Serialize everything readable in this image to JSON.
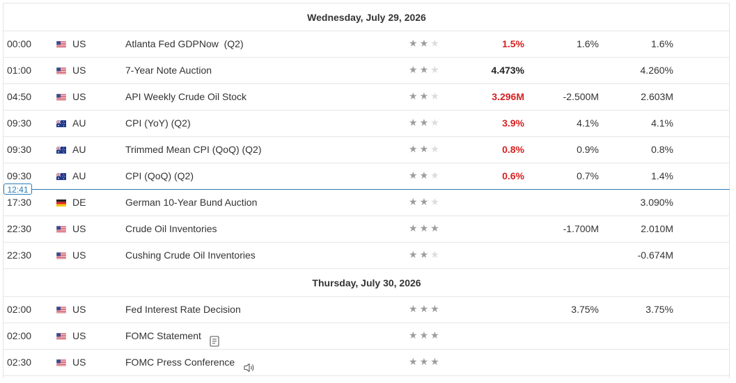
{
  "days": [
    {
      "date": "Wednesday, July 29, 2026",
      "events": [
        {
          "time": "00:00",
          "flag": "us-flag",
          "country": "US",
          "event": "Atlanta Fed GDPNow  (Q2)",
          "importance": 2,
          "actual": "1.5%",
          "actual_color": "#d62020",
          "forecast": "1.6%",
          "previous": "1.6%"
        },
        {
          "time": "01:00",
          "flag": "us-flag",
          "country": "US",
          "event": "7-Year Note Auction",
          "importance": 2,
          "actual": "4.473%",
          "actual_color": "#222222",
          "forecast": "",
          "previous": "4.260%"
        },
        {
          "time": "04:50",
          "flag": "us-flag",
          "country": "US",
          "event": "API Weekly Crude Oil Stock",
          "importance": 2,
          "actual": "3.296M",
          "actual_color": "#d62020",
          "forecast": "-2.500M",
          "previous": "2.603M"
        },
        {
          "time": "09:30",
          "flag": "au-flag",
          "country": "AU",
          "event": "CPI (YoY) (Q2)",
          "importance": 2,
          "actual": "3.9%",
          "actual_color": "#d62020",
          "forecast": "4.1%",
          "previous": "4.1%"
        },
        {
          "time": "09:30",
          "flag": "au-flag",
          "country": "AU",
          "event": "Trimmed Mean CPI (QoQ) (Q2)",
          "importance": 2,
          "actual": "0.8%",
          "actual_color": "#d62020",
          "forecast": "0.9%",
          "previous": "0.8%"
        },
        {
          "time": "09:30",
          "flag": "au-flag",
          "country": "AU",
          "event": "CPI (QoQ) (Q2)",
          "importance": 2,
          "actual": "0.6%",
          "actual_color": "#d62020",
          "forecast": "0.7%",
          "previous": "1.4%"
        },
        {
          "time": "17:30",
          "flag": "de-flag",
          "country": "DE",
          "event": "German 10-Year Bund Auction",
          "importance": 2,
          "actual": "",
          "actual_color": "#222222",
          "forecast": "",
          "previous": "3.090%"
        },
        {
          "time": "22:30",
          "flag": "us-flag",
          "country": "US",
          "event": "Crude Oil Inventories",
          "importance": 3,
          "actual": "",
          "actual_color": "#222222",
          "forecast": "-1.700M",
          "previous": "2.010M"
        },
        {
          "time": "22:30",
          "flag": "us-flag",
          "country": "US",
          "event": "Cushing Crude Oil Inventories",
          "importance": 2,
          "actual": "",
          "actual_color": "#222222",
          "forecast": "",
          "previous": "-0.674M"
        }
      ]
    },
    {
      "date": "Thursday, July 30, 2026",
      "events": [
        {
          "time": "02:00",
          "flag": "us-flag",
          "country": "US",
          "event": "Fed Interest Rate Decision",
          "importance": 3,
          "actual": "",
          "actual_color": "#222222",
          "forecast": "3.75%",
          "previous": "3.75%"
        },
        {
          "time": "02:00",
          "flag": "us-flag",
          "country": "US",
          "event": "FOMC Statement",
          "importance": 3,
          "actual": "",
          "actual_color": "#222222",
          "forecast": "",
          "previous": "",
          "icon": "document-icon"
        },
        {
          "time": "02:30",
          "flag": "us-flag",
          "country": "US",
          "event": "FOMC Press Conference",
          "importance": 3,
          "actual": "",
          "actual_color": "#222222",
          "forecast": "",
          "previous": "",
          "icon": "speaker-icon"
        }
      ]
    }
  ],
  "now_marker": {
    "time": "12:41",
    "color": "#2a7ab8"
  },
  "colors": {
    "negative": "#d62020",
    "star_on": "#9c9c9c",
    "star_off": "#dcdcdc"
  }
}
